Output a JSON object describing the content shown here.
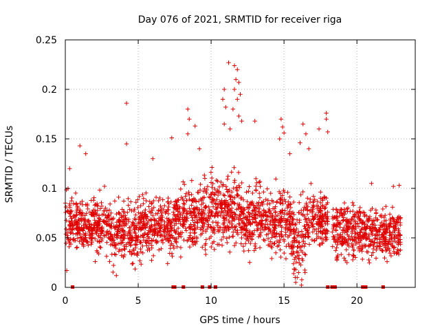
{
  "chart_data": {
    "type": "scatter",
    "title": "Day 076 of 2021, SRMTID for receiver riga",
    "xlabel": "GPS time / hours",
    "ylabel": "SRMTID / TECUs",
    "xlim": [
      0,
      24
    ],
    "ylim": [
      0,
      0.25
    ],
    "x_ticks": [
      0,
      5,
      10,
      15,
      20
    ],
    "x_tick_labels": [
      "0",
      "5",
      "10",
      "15",
      "20"
    ],
    "y_ticks": [
      0,
      0.05,
      0.1,
      0.15,
      0.2,
      0.25
    ],
    "y_tick_labels": [
      "0",
      "0.05",
      "0.1",
      "0.15",
      "0.2",
      "0.25"
    ],
    "grid": true,
    "marker": "plus",
    "color": "#e00000",
    "series": [
      {
        "name": "SRMTID",
        "bulk_points_note": "dense cloud of several thousand points; envelope summarised by time bins below",
        "envelope": [
          {
            "x": [
              0.0,
              1.0
            ],
            "y": [
              0.03,
              0.12
            ]
          },
          {
            "x": [
              1.0,
              3.0
            ],
            "y": [
              0.025,
              0.115
            ]
          },
          {
            "x": [
              3.0,
              5.0
            ],
            "y": [
              0.015,
              0.11
            ]
          },
          {
            "x": [
              5.0,
              7.5
            ],
            "y": [
              0.02,
              0.12
            ]
          },
          {
            "x": [
              7.5,
              9.5
            ],
            "y": [
              0.025,
              0.13
            ]
          },
          {
            "x": [
              9.5,
              12.0
            ],
            "y": [
              0.025,
              0.15
            ]
          },
          {
            "x": [
              12.0,
              14.0
            ],
            "y": [
              0.025,
              0.13
            ]
          },
          {
            "x": [
              14.0,
              15.5
            ],
            "y": [
              0.02,
              0.13
            ]
          },
          {
            "x": [
              15.5,
              16.5
            ],
            "y": [
              0.0,
              0.12
            ]
          },
          {
            "x": [
              16.5,
              18.0
            ],
            "y": [
              0.03,
              0.12
            ]
          },
          {
            "x": [
              18.3,
              20.3
            ],
            "y": [
              0.02,
              0.11
            ]
          },
          {
            "x": [
              20.3,
              23.0
            ],
            "y": [
              0.02,
              0.1
            ]
          }
        ],
        "outliers": [
          {
            "x": 0.3,
            "y": 0.12
          },
          {
            "x": 1.0,
            "y": 0.143
          },
          {
            "x": 1.4,
            "y": 0.135
          },
          {
            "x": 4.2,
            "y": 0.186
          },
          {
            "x": 4.2,
            "y": 0.145
          },
          {
            "x": 6.0,
            "y": 0.13
          },
          {
            "x": 7.3,
            "y": 0.151
          },
          {
            "x": 8.4,
            "y": 0.18
          },
          {
            "x": 8.5,
            "y": 0.17
          },
          {
            "x": 8.4,
            "y": 0.155
          },
          {
            "x": 8.9,
            "y": 0.163
          },
          {
            "x": 9.2,
            "y": 0.14
          },
          {
            "x": 10.8,
            "y": 0.19
          },
          {
            "x": 10.9,
            "y": 0.2
          },
          {
            "x": 11.0,
            "y": 0.182
          },
          {
            "x": 10.9,
            "y": 0.165
          },
          {
            "x": 11.2,
            "y": 0.227
          },
          {
            "x": 11.6,
            "y": 0.224
          },
          {
            "x": 11.8,
            "y": 0.22
          },
          {
            "x": 11.7,
            "y": 0.21
          },
          {
            "x": 11.9,
            "y": 0.207
          },
          {
            "x": 11.6,
            "y": 0.2
          },
          {
            "x": 11.8,
            "y": 0.19
          },
          {
            "x": 12.0,
            "y": 0.195
          },
          {
            "x": 11.5,
            "y": 0.18
          },
          {
            "x": 11.9,
            "y": 0.173
          },
          {
            "x": 12.1,
            "y": 0.168
          },
          {
            "x": 11.3,
            "y": 0.16
          },
          {
            "x": 13.0,
            "y": 0.168
          },
          {
            "x": 14.8,
            "y": 0.17
          },
          {
            "x": 14.9,
            "y": 0.162
          },
          {
            "x": 15.0,
            "y": 0.156
          },
          {
            "x": 14.7,
            "y": 0.15
          },
          {
            "x": 15.4,
            "y": 0.135
          },
          {
            "x": 16.3,
            "y": 0.165
          },
          {
            "x": 16.5,
            "y": 0.155
          },
          {
            "x": 16.1,
            "y": 0.146
          },
          {
            "x": 16.7,
            "y": 0.14
          },
          {
            "x": 17.4,
            "y": 0.16
          },
          {
            "x": 17.9,
            "y": 0.176
          },
          {
            "x": 17.9,
            "y": 0.17
          },
          {
            "x": 18.0,
            "y": 0.157
          },
          {
            "x": 15.8,
            "y": 0.005
          },
          {
            "x": 15.9,
            "y": 0.01
          },
          {
            "x": 15.8,
            "y": 0.018
          },
          {
            "x": 0.1,
            "y": 0.017
          },
          {
            "x": 3.5,
            "y": 0.012
          },
          {
            "x": 21.0,
            "y": 0.105
          },
          {
            "x": 22.5,
            "y": 0.102
          },
          {
            "x": 22.9,
            "y": 0.103
          }
        ]
      },
      {
        "name": "data gaps (y = 0)",
        "x": [
          0.5,
          7.4,
          7.5,
          8.1,
          9.4,
          9.9,
          10.3,
          18.0,
          18.3,
          18.5,
          20.4,
          20.6,
          21.8
        ]
      }
    ]
  }
}
